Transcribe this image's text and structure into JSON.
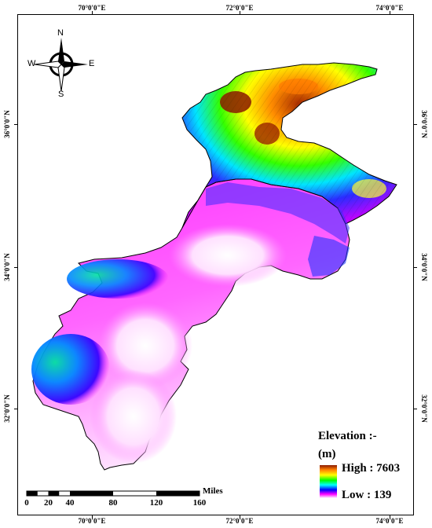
{
  "graticule": {
    "top": [
      "70°0'0\"E",
      "72°0'0\"E",
      "74°0'0\"E"
    ],
    "bottom": [
      "70°0'0\"E",
      "72°0'0\"E",
      "74°0'0\"E"
    ],
    "left": [
      "36°0'0\"N",
      "34°0'0\"N",
      "32°0'0\"N"
    ],
    "right": [
      "36°0'0\"N",
      "34°0'0\"N",
      "32°0'0\"N"
    ]
  },
  "compass": {
    "n": "N",
    "s": "S",
    "e": "E",
    "w": "W"
  },
  "legend": {
    "title": "Elevation :-",
    "unit": "(m)",
    "high_label": "High : 7603",
    "low_label": "Low : 139",
    "high_value": 7603,
    "low_value": 139,
    "colors": [
      "#8b1a00",
      "#ff8000",
      "#ffff00",
      "#00ff00",
      "#00ffff",
      "#0000ff",
      "#ff00ff",
      "#ffffff"
    ]
  },
  "scale": {
    "ticks": [
      "0",
      "20",
      "40",
      "80",
      "120",
      "160"
    ],
    "unit": "Miles"
  }
}
